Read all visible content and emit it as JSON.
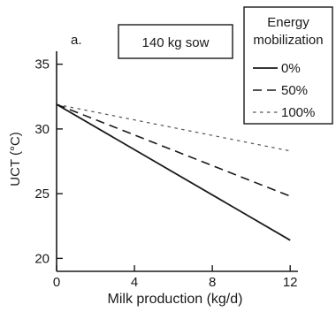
{
  "chart_data": {
    "type": "line",
    "panel_label": "a.",
    "title": "140 kg sow",
    "xlabel": "Milk production (kg/d)",
    "ylabel": "UCT (°C)",
    "xlim": [
      0,
      12.4
    ],
    "ylim": [
      19,
      36
    ],
    "xticks": [
      0,
      4,
      8,
      12
    ],
    "yticks": [
      20,
      25,
      30,
      35
    ],
    "grid": false,
    "legend": {
      "title_line1": "Energy",
      "title_line2": "mobilization",
      "placement": "top-right"
    },
    "series": [
      {
        "name": "0%",
        "x": [
          0,
          12
        ],
        "y": [
          31.9,
          21.4
        ],
        "style": "solid",
        "color": "#1a1a1a"
      },
      {
        "name": "50%",
        "x": [
          0,
          12
        ],
        "y": [
          31.9,
          24.8
        ],
        "style": "dashed",
        "color": "#1a1a1a"
      },
      {
        "name": "100%",
        "x": [
          0,
          12
        ],
        "y": [
          31.9,
          28.3
        ],
        "style": "dotted",
        "color": "#1a1a1a"
      }
    ]
  }
}
